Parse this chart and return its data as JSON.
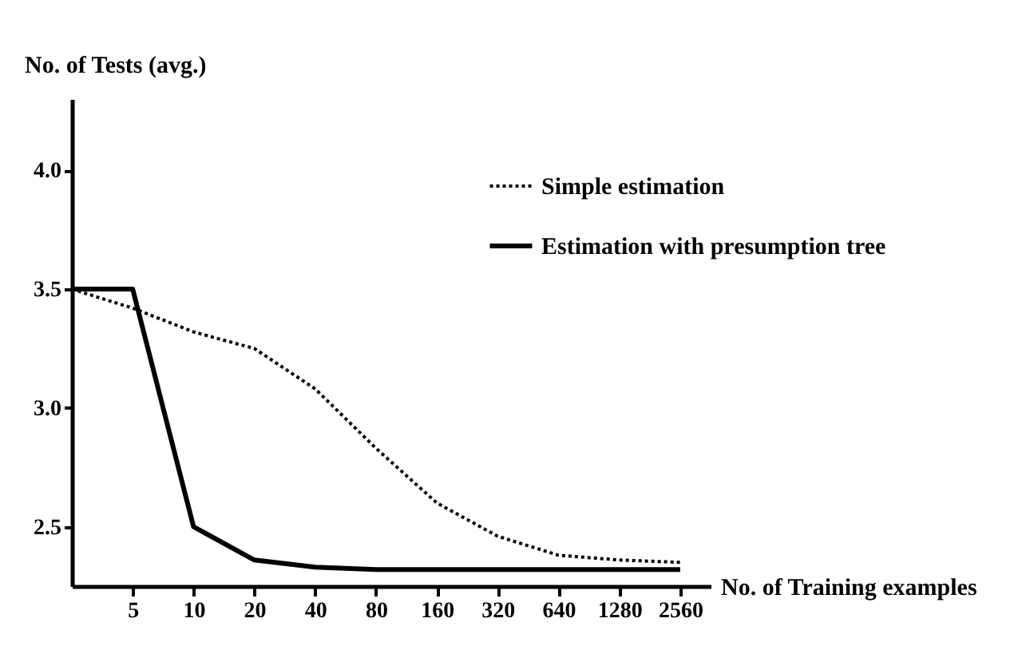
{
  "chart_data": {
    "type": "line",
    "xlabel": "No. of Training examples",
    "ylabel": "No. of Tests (avg.)",
    "categories": [
      null,
      "5",
      "10",
      "20",
      "40",
      "80",
      "160",
      "320",
      "640",
      "1280",
      "2560"
    ],
    "series": [
      {
        "name": "Simple estimation",
        "color": "#000000",
        "line_style": "dotted",
        "values": [
          3.5,
          3.42,
          3.32,
          3.25,
          3.08,
          2.83,
          2.6,
          2.46,
          2.38,
          2.36,
          2.35
        ]
      },
      {
        "name": "Estimation with presumption tree",
        "color": "#000000",
        "line_style": "solid",
        "values": [
          3.5,
          3.5,
          2.5,
          2.36,
          2.33,
          2.32,
          2.32,
          2.32,
          2.32,
          2.32,
          2.32
        ]
      }
    ],
    "ylim": [
      2.25,
      4.3
    ],
    "yticks": [
      "2.5",
      {
        "value": 3.0,
        "label": "3.0"
      },
      "3.5",
      {
        "value": 4.0,
        "label": "4.0"
      }
    ],
    "grid": false,
    "legend": "top right",
    "marker": "none"
  }
}
